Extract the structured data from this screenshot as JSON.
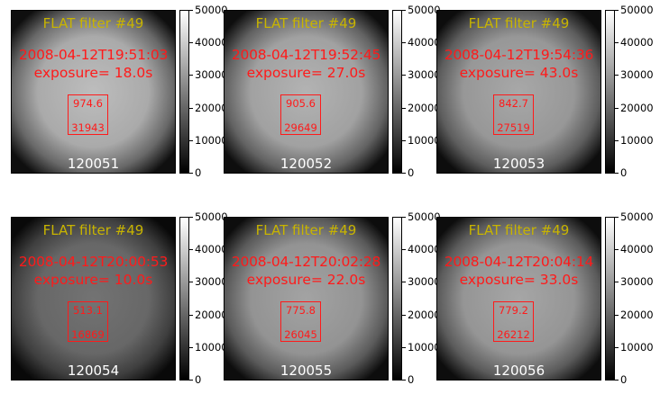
{
  "panels": [
    {
      "title": "FLAT filter #49",
      "datetime": "2008-04-12T19:51:03",
      "exposure": "exposure= 18.0s",
      "box_top": "974.6",
      "box_bottom": "31943",
      "frame_id": "120051"
    },
    {
      "title": "FLAT filter #49",
      "datetime": "2008-04-12T19:52:45",
      "exposure": "exposure= 27.0s",
      "box_top": "905.6",
      "box_bottom": "29649",
      "frame_id": "120052"
    },
    {
      "title": "FLAT filter #49",
      "datetime": "2008-04-12T19:54:36",
      "exposure": "exposure= 43.0s",
      "box_top": "842.7",
      "box_bottom": "27519",
      "frame_id": "120053"
    },
    {
      "title": "FLAT filter #49",
      "datetime": "2008-04-12T20:00:53",
      "exposure": "exposure= 10.0s",
      "box_top": "513.1",
      "box_bottom": "16869",
      "frame_id": "120054"
    },
    {
      "title": "FLAT filter #49",
      "datetime": "2008-04-12T20:02:28",
      "exposure": "exposure= 22.0s",
      "box_top": "775.8",
      "box_bottom": "26045",
      "frame_id": "120055"
    },
    {
      "title": "FLAT filter #49",
      "datetime": "2008-04-12T20:04:14",
      "exposure": "exposure= 33.0s",
      "box_top": "779.2",
      "box_bottom": "26212",
      "frame_id": "120056"
    }
  ],
  "colorbar": {
    "ticks": [
      "50000",
      "40000",
      "30000",
      "20000",
      "10000",
      "0"
    ],
    "colormap": "gray"
  },
  "colors": {
    "title": "#c8b400",
    "annotation": "#ff1a1a",
    "frame_label": "#ffffff"
  }
}
